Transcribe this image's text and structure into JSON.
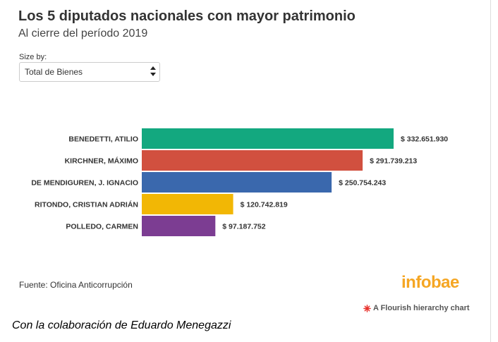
{
  "header": {
    "title": "Los 5 diputados nacionales con mayor patrimonio",
    "subtitle": "Al cierre del período 2019"
  },
  "controls": {
    "size_by_label": "Size by:",
    "size_by_value": "Total de Bienes"
  },
  "chart_data": {
    "type": "bar",
    "orientation": "horizontal",
    "categories": [
      "BENEDETTI, ATILIO",
      "KIRCHNER, MÁXIMO",
      "DE MENDIGUREN, J. IGNACIO",
      "RITONDO, CRISTIAN ADRIÁN",
      "POLLEDO, CARMEN"
    ],
    "values": [
      332651930,
      291739213,
      250754243,
      120742819,
      97187752
    ],
    "value_labels": [
      "$ 332.651.930",
      "$ 291.739.213",
      "$ 250.754.243",
      "$ 120.742.819",
      "$ 97.187.752"
    ],
    "colors": [
      "#13a87f",
      "#d1503f",
      "#3a68ad",
      "#f2b705",
      "#7c3d92"
    ],
    "grid": false,
    "legend": "none"
  },
  "footer": {
    "source": "Fuente: Oficina Anticorrupción",
    "logo": "infobae",
    "flourish_credit": "A Flourish hierarchy chart",
    "collaboration": "Con la colaboración de Eduardo Menegazzi"
  },
  "icons": {
    "select_arrow": "up-down-arrows-icon",
    "flourish": "flourish-star-icon"
  },
  "colors": {
    "logo": "#f5a623",
    "flourish_icon": "#e8312b"
  }
}
